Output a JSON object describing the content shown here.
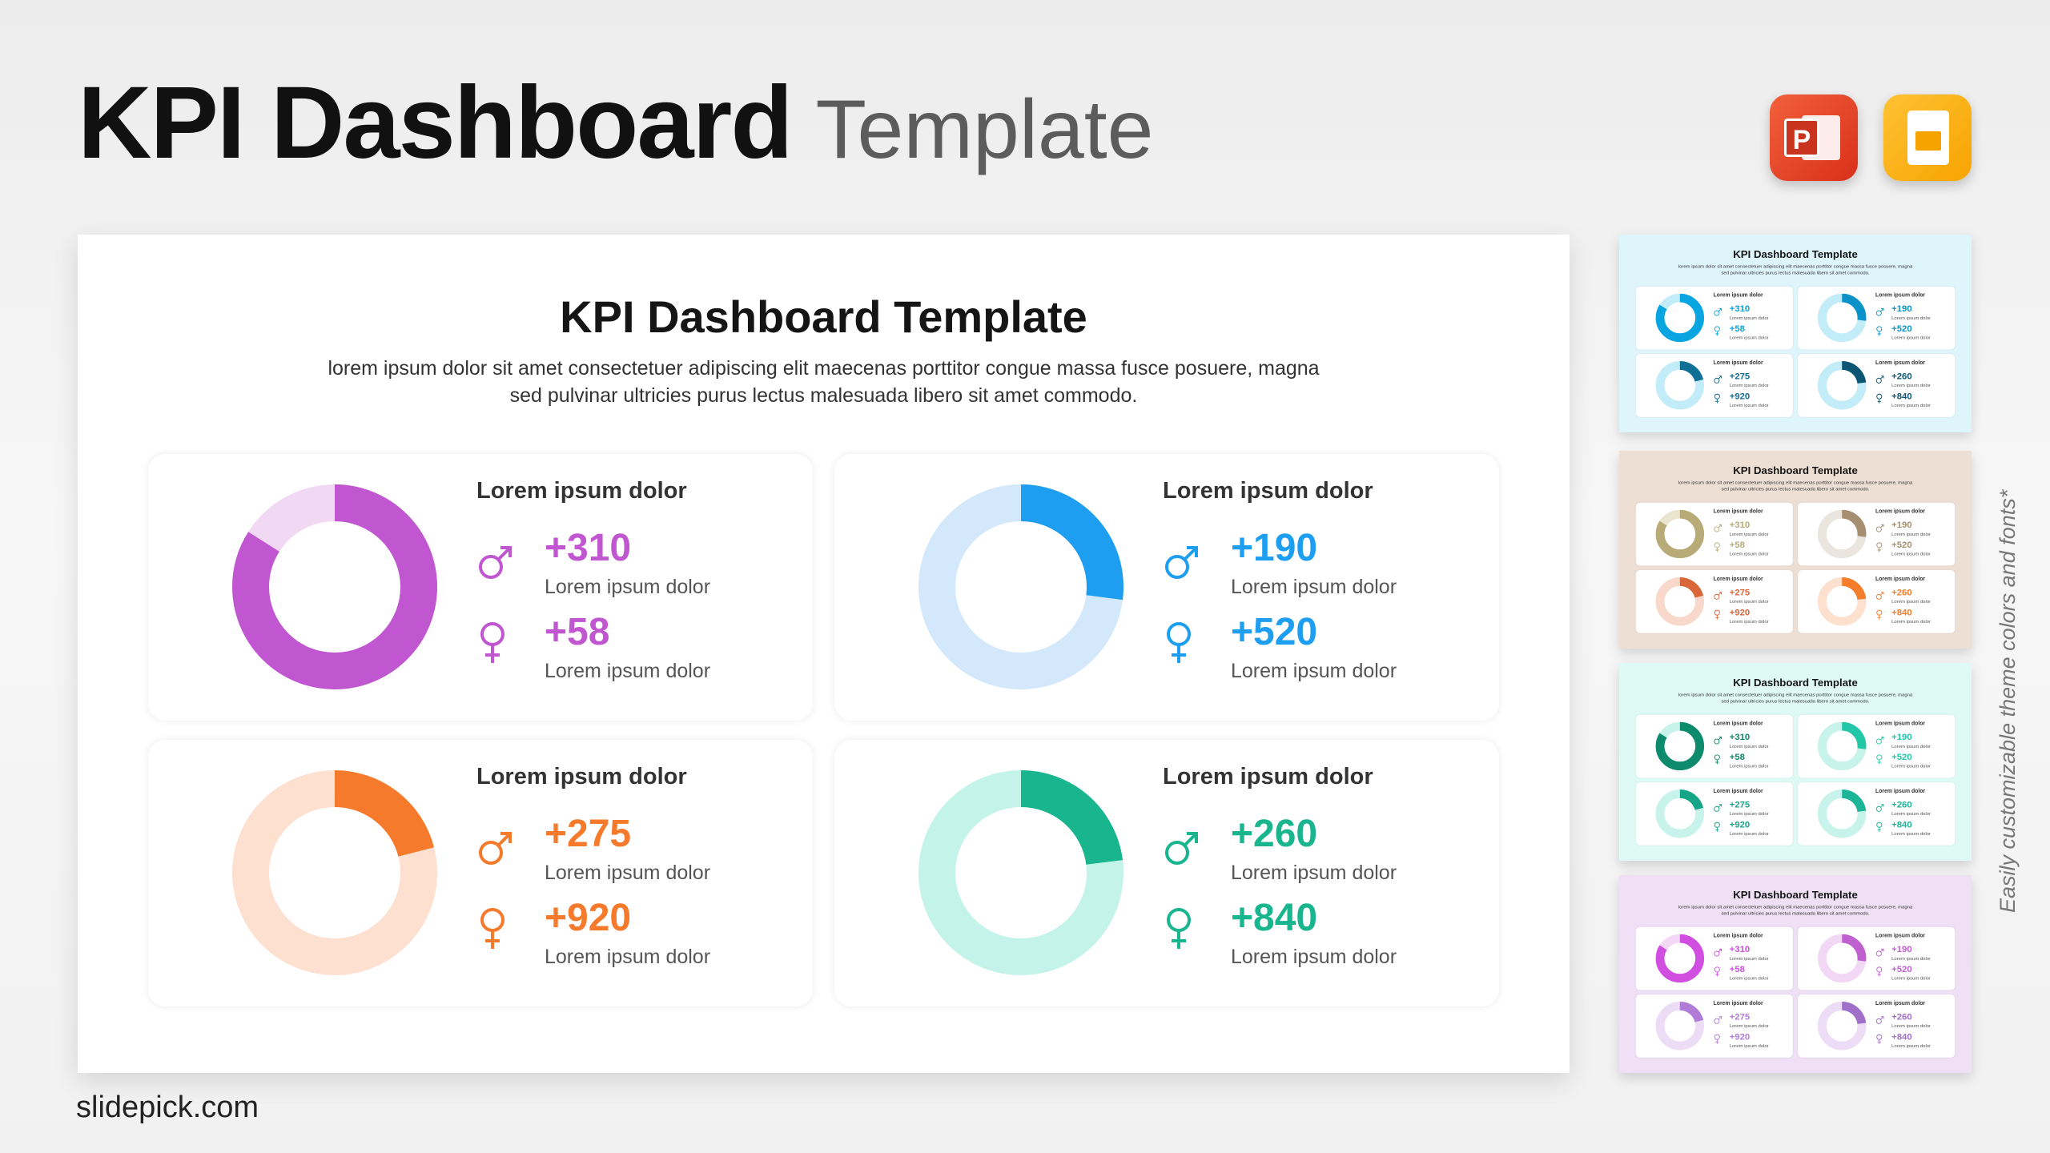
{
  "header": {
    "title_bold": "KPI Dashboard",
    "title_light": "Template"
  },
  "apps": {
    "powerpoint": "P",
    "google_slides": ""
  },
  "slide": {
    "title": "KPI Dashboard Template",
    "subtitle": "lorem ipsum dolor sit amet consectetuer adipiscing elit maecenas porttitor congue massa fusce posuere, magna sed pulvinar ultricies purus lectus malesuada libero sit amet commodo.",
    "cards": [
      {
        "heading": "Lorem ipsum dolor",
        "male_value": "+310",
        "male_label": "Lorem ipsum dolor",
        "female_value": "+58",
        "female_label": "Lorem ipsum dolor",
        "fraction": 0.84,
        "color": "#c157d0",
        "track": "#f1d9f4"
      },
      {
        "heading": "Lorem ipsum dolor",
        "male_value": "+190",
        "male_label": "Lorem ipsum dolor",
        "female_value": "+520",
        "female_label": "Lorem ipsum dolor",
        "fraction": 0.27,
        "color": "#1e9ef0",
        "track": "#d3e9fb"
      },
      {
        "heading": "Lorem ipsum dolor",
        "male_value": "+275",
        "male_label": "Lorem ipsum dolor",
        "female_value": "+920",
        "female_label": "Lorem ipsum dolor",
        "fraction": 0.21,
        "color": "#f57a2b",
        "track": "#fde0d0"
      },
      {
        "heading": "Lorem ipsum dolor",
        "male_value": "+260",
        "male_label": "Lorem ipsum dolor",
        "female_value": "+840",
        "female_label": "Lorem ipsum dolor",
        "fraction": 0.23,
        "color": "#18b58f",
        "track": "#c4f4e9"
      }
    ]
  },
  "themes": [
    {
      "bg": "#ddf5fb",
      "colors": [
        "#08a5e0",
        "#0b93c9",
        "#0f6f94",
        "#0c5674"
      ],
      "tracks": [
        "#c2ecf8",
        "#c2ecf8",
        "#c2ecf8",
        "#c2ecf8"
      ]
    },
    {
      "bg": "#eedfd5",
      "colors": [
        "#b9ab78",
        "#a58f70",
        "#d9673a",
        "#f57c2a"
      ],
      "tracks": [
        "#ebe5cf",
        "#ebe5df",
        "#f7d8cb",
        "#fde0cd"
      ]
    },
    {
      "bg": "#dffaf5",
      "colors": [
        "#0e8a6c",
        "#22c7a8",
        "#17a587",
        "#1cb597"
      ],
      "tracks": [
        "#c8f3ea",
        "#c8f3ea",
        "#c8f3ea",
        "#c8f3ea"
      ]
    },
    {
      "bg": "#efe0f6",
      "colors": [
        "#d04ee0",
        "#c060d0",
        "#b07cd8",
        "#a070c8"
      ],
      "tracks": [
        "#f3d8f6",
        "#f3d8f6",
        "#ecdcf6",
        "#ecdcf6"
      ]
    }
  ],
  "side_note": "Easily customizable theme colors and fonts*",
  "footer": "slidepick.com"
}
